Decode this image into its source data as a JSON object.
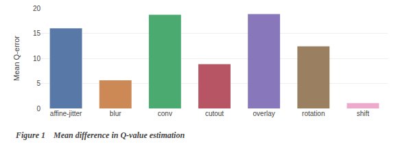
{
  "chart_data": {
    "type": "bar",
    "categories": [
      "affine-jitter",
      "blur",
      "conv",
      "cutout",
      "overlay",
      "rotation",
      "shift"
    ],
    "values": [
      16.0,
      5.6,
      18.7,
      8.85,
      18.85,
      12.4,
      1.05
    ],
    "colors": [
      "#5878a8",
      "#cc8855",
      "#4aaa70",
      "#b85565",
      "#8877bb",
      "#9a8060",
      "#eeaacc"
    ],
    "ylabel": "Mean Q-error",
    "ylim": [
      0,
      20
    ],
    "yticks": [
      0,
      5,
      10,
      15,
      20
    ],
    "grid": true,
    "annotations": [
      "Figure 1    Mean difference in Q-value estimation"
    ]
  }
}
